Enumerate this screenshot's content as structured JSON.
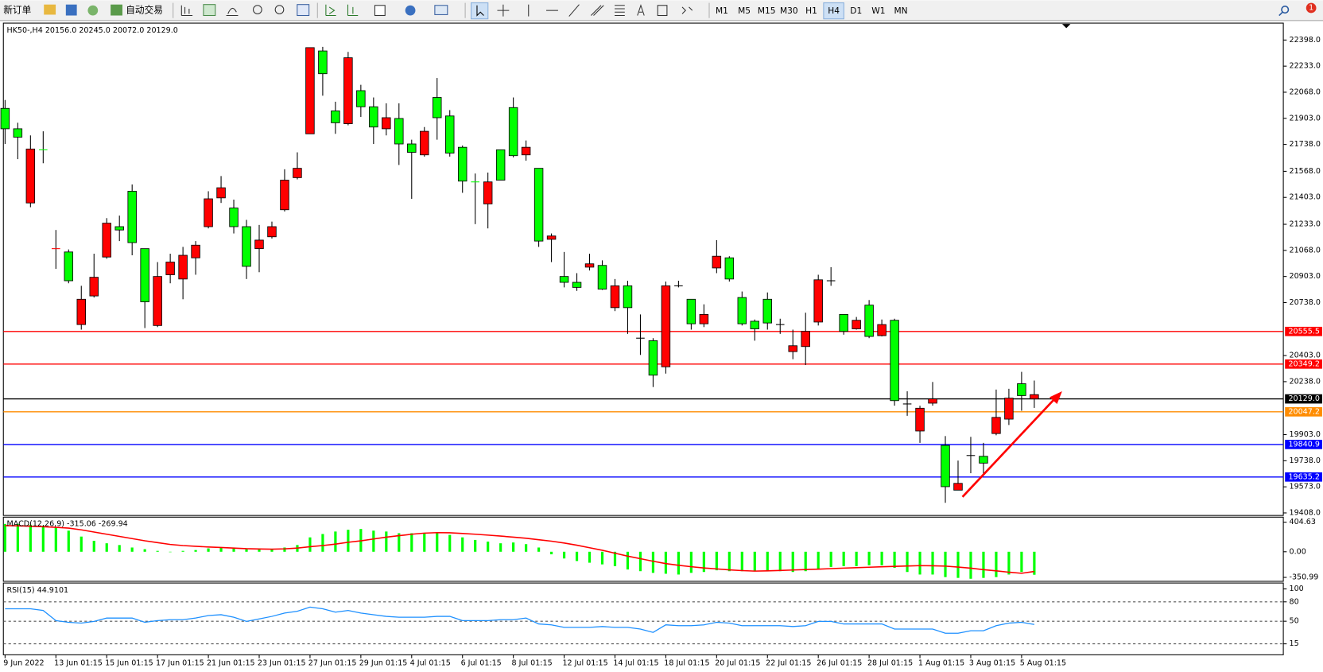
{
  "toolbar": {
    "new_order": "新订单",
    "auto_trading": "自动交易",
    "timeframes": [
      "M1",
      "M5",
      "M15",
      "M30",
      "H1",
      "H4",
      "D1",
      "W1",
      "MN"
    ],
    "active_timeframe": 5,
    "badge": "1"
  },
  "chart_data": [
    {
      "type": "candlestick",
      "title": "HK50-,H4  20156.0 20245.0 20072.0 20129.0",
      "categories": [
        "9 Jun 2022",
        null,
        null,
        null,
        "13 Jun 01:15",
        null,
        null,
        null,
        "15 Jun 01:15",
        null,
        null,
        null,
        "17 Jun 01:15",
        null,
        null,
        null,
        "21 Jun 01:15",
        null,
        null,
        null,
        "23 Jun 01:15",
        null,
        null,
        null,
        "27 Jun 01:15",
        null,
        null,
        null,
        "29 Jun 01:15",
        null,
        null,
        null,
        "4 Jul 01:15",
        null,
        null,
        null,
        "6 Jul 01:15",
        null,
        null,
        null,
        "8 Jul 01:15",
        null,
        null,
        null,
        "12 Jul 01:15",
        null,
        null,
        null,
        "14 Jul 01:15",
        null,
        null,
        null,
        "18 Jul 01:15",
        null,
        null,
        null,
        "20 Jul 01:15",
        null,
        null,
        null,
        "22 Jul 01:15",
        null,
        null,
        null,
        "26 Jul 01:15",
        null,
        null,
        null,
        "28 Jul 01:15",
        null,
        null,
        null,
        "1 Aug 01:15",
        null,
        null,
        null,
        "3 Aug 01:15",
        null,
        null,
        null,
        "5 Aug 01:15",
        null
      ],
      "open": [
        21837,
        21784,
        21709,
        21699,
        21079,
        20876,
        20759,
        20898,
        21240,
        21197,
        21117,
        20743,
        20903,
        20994,
        21037,
        21101,
        21394,
        21464,
        21218,
        20967,
        21133,
        21218,
        21512,
        21587,
        22350,
        22185,
        21875,
        22286,
        21976,
        21848,
        21907,
        21741,
        21688,
        21821,
        21907,
        21683,
        21506,
        21496,
        21501,
        21512,
        21667,
        21720,
        21127,
        21159,
        20866,
        20834,
        20983,
        20823,
        20844,
        20706,
        20513,
        20279,
        20844,
        20844,
        20604,
        20663,
        21031,
        20887,
        20604,
        20572,
        20609,
        20599,
        20465,
        20556,
        20882,
        20876,
        20556,
        20626,
        20524,
        20599,
        20118,
        20097,
        20070,
        20129,
        19574,
        19595,
        19771,
        19723,
        20012,
        20134,
        20150,
        20156
      ],
      "high": [
        22019,
        21875,
        21795,
        21821,
        21197,
        21074,
        20844,
        21047,
        21272,
        21288,
        21485,
        21079,
        20994,
        21047,
        21090,
        21127,
        21442,
        21538,
        21389,
        21261,
        21229,
        21250,
        21581,
        21688,
        22350,
        22355,
        22008,
        22323,
        22115,
        22035,
        21998,
        21998,
        21768,
        21848,
        22158,
        21955,
        21731,
        21554,
        21560,
        21704,
        22035,
        21763,
        21587,
        21175,
        21058,
        20924,
        21047,
        21005,
        20887,
        20876,
        20663,
        20513,
        20871,
        20876,
        20759,
        20727,
        21133,
        21031,
        20808,
        20631,
        20802,
        20636,
        20567,
        20674,
        20914,
        20962,
        20663,
        20647,
        20754,
        20631,
        20636,
        20177,
        20086,
        20236,
        19894,
        19739,
        19889,
        19851,
        20188,
        20193,
        20300,
        20245
      ],
      "low": [
        21741,
        21645,
        21341,
        21619,
        20951,
        20860,
        20567,
        20770,
        21015,
        21127,
        21037,
        20577,
        20583,
        20860,
        20759,
        20914,
        21207,
        21368,
        21175,
        20887,
        20930,
        21143,
        21314,
        21517,
        21805,
        22046,
        21805,
        21859,
        21912,
        21741,
        21795,
        21608,
        21394,
        21661,
        21768,
        21661,
        21432,
        21234,
        21207,
        21512,
        21656,
        21635,
        21090,
        20994,
        20834,
        20812,
        20941,
        20818,
        20684,
        20540,
        20407,
        20204,
        20289,
        20834,
        20567,
        20583,
        20924,
        20871,
        20593,
        20497,
        20567,
        20540,
        20380,
        20343,
        20593,
        20844,
        20535,
        20567,
        20513,
        20524,
        20086,
        20022,
        19851,
        20086,
        19472,
        19552,
        19659,
        19649,
        19899,
        19964,
        20054,
        20072
      ],
      "close": [
        21966,
        21837,
        21368,
        21704,
        21074,
        21058,
        20599,
        20780,
        21026,
        21218,
        21442,
        21079,
        20593,
        20914,
        20887,
        21021,
        21218,
        21400,
        21336,
        21218,
        21079,
        21154,
        21325,
        21528,
        21805,
        22329,
        21950,
        21869,
        22078,
        21976,
        21837,
        21902,
        21741,
        21672,
        22035,
        21918,
        21720,
        21501,
        21362,
        21704,
        21971,
        21672,
        21587,
        21138,
        20903,
        20866,
        20962,
        20973,
        20706,
        20844,
        20513,
        20497,
        20332,
        20844,
        20759,
        20604,
        20957,
        21021,
        20770,
        20620,
        20759,
        20599,
        20428,
        20460,
        20615,
        20876,
        20663,
        20572,
        20722,
        20529,
        20626,
        20097,
        19926,
        20102,
        19835,
        19552,
        19771,
        19766,
        19910,
        20001,
        20225,
        20129
      ],
      "up_color": "#00ff00",
      "down_color": "#ff0000",
      "ylim": [
        19392,
        22505
      ],
      "yticks": [
        {
          "value": 22398,
          "label": "22398.0"
        },
        {
          "value": 22233,
          "label": "22233.0"
        },
        {
          "value": 22068,
          "label": "22068.0"
        },
        {
          "value": 21903,
          "label": "21903.0"
        },
        {
          "value": 21738,
          "label": "21738.0"
        },
        {
          "value": 21568,
          "label": "21568.0"
        },
        {
          "value": 21403,
          "label": "21403.0"
        },
        {
          "value": 21233,
          "label": "21233.0"
        },
        {
          "value": 21068,
          "label": "21068.0"
        },
        {
          "value": 20903,
          "label": "20903.0"
        },
        {
          "value": 20738,
          "label": "20738.0"
        },
        {
          "value": 20403,
          "label": "20403.0"
        },
        {
          "value": 20238,
          "label": "20238.0"
        },
        {
          "value": 19903,
          "label": "19903.0"
        },
        {
          "value": 19738,
          "label": "19738.0"
        },
        {
          "value": 19573,
          "label": "19573.0"
        },
        {
          "value": 19408,
          "label": "19408.0"
        }
      ],
      "levels": [
        {
          "value": 20555.5,
          "color": "#ff0000"
        },
        {
          "value": 20349.2,
          "color": "#ff0000"
        },
        {
          "value": 20129,
          "label": "20129.0",
          "color": "#000000"
        },
        {
          "value": 20047.2,
          "color": "#ff8c00"
        },
        {
          "value": 19840.9,
          "color": "#0000ff"
        },
        {
          "value": 19635.2,
          "color": "#0000ff"
        }
      ]
    },
    {
      "type": "macd",
      "title": "MACD(12,26,9) -315.06 -269.94",
      "series": [
        {
          "color": "#00ff00",
          "style": "bar",
          "values": [
            381,
            381,
            370,
            358,
            335,
            289,
            208,
            150,
            116,
            92,
            58,
            35,
            12,
            0,
            12,
            23,
            46,
            58,
            46,
            35,
            35,
            35,
            58,
            92,
            197,
            243,
            277,
            301,
            312,
            289,
            277,
            254,
            254,
            254,
            254,
            231,
            197,
            162,
            139,
            116,
            127,
            104,
            58,
            -35,
            -92,
            -127,
            -150,
            -173,
            -197,
            -243,
            -266,
            -289,
            -301,
            -312,
            -289,
            -277,
            -254,
            -266,
            -266,
            -266,
            -266,
            -266,
            -277,
            -266,
            -231,
            -208,
            -197,
            -197,
            -185,
            -185,
            -220,
            -277,
            -312,
            -312,
            -347,
            -358,
            -370,
            -358,
            -347,
            -312,
            -277,
            -315.06
          ]
        },
        {
          "color": "#ff0000",
          "style": "line",
          "values": [
            358,
            355,
            350,
            343,
            335,
            324,
            300,
            270,
            240,
            210,
            180,
            150,
            125,
            100,
            85,
            75,
            65,
            58,
            50,
            42,
            38,
            35,
            40,
            50,
            69,
            85,
            105,
            130,
            150,
            175,
            200,
            220,
            240,
            255,
            262,
            260,
            250,
            240,
            228,
            215,
            200,
            185,
            165,
            145,
            120,
            90,
            55,
            20,
            -20,
            -60,
            -95,
            -130,
            -162,
            -185,
            -205,
            -222,
            -235,
            -248,
            -258,
            -265,
            -262,
            -256,
            -250,
            -244,
            -238,
            -231,
            -224,
            -218,
            -212,
            -206,
            -200,
            -195,
            -190,
            -192,
            -197,
            -210,
            -225,
            -245,
            -262,
            -280,
            -295,
            -269.94
          ]
        }
      ],
      "ylim": [
        -405,
        474
      ],
      "yticks": [
        404.63,
        {
          "value": 0,
          "label": "0.00"
        },
        -350.99
      ]
    },
    {
      "type": "line",
      "title": "RSI(15) 44.9101",
      "series": [
        {
          "color": "#1e90ff",
          "values": [
            69.3,
            69.3,
            69.3,
            66.7,
            51.0,
            48.4,
            47.1,
            49.7,
            54.9,
            54.9,
            54.9,
            48.4,
            51.0,
            52.3,
            52.3,
            54.9,
            58.8,
            60.1,
            56.2,
            49.7,
            53.6,
            57.5,
            62.7,
            65.4,
            71.9,
            69.3,
            64.1,
            66.7,
            62.7,
            60.1,
            57.5,
            56.2,
            56.2,
            56.2,
            57.5,
            57.5,
            51.0,
            51.0,
            51.0,
            52.3,
            52.3,
            54.9,
            45.8,
            44.4,
            40.5,
            40.5,
            40.5,
            41.8,
            40.5,
            40.5,
            37.9,
            32.7,
            44.4,
            43.1,
            43.1,
            44.4,
            48.4,
            47.1,
            43.1,
            43.1,
            43.1,
            43.1,
            41.8,
            43.1,
            49.7,
            49.7,
            45.8,
            45.8,
            45.8,
            45.8,
            37.9,
            37.9,
            37.9,
            37.9,
            31.4,
            31.4,
            35.3,
            35.3,
            43.1,
            47.1,
            48.4,
            44.9101
          ]
        }
      ],
      "ylim": [
        0,
        100
      ],
      "yticks": [
        100,
        80,
        50,
        15
      ],
      "levels": [
        80,
        50,
        15
      ]
    }
  ]
}
